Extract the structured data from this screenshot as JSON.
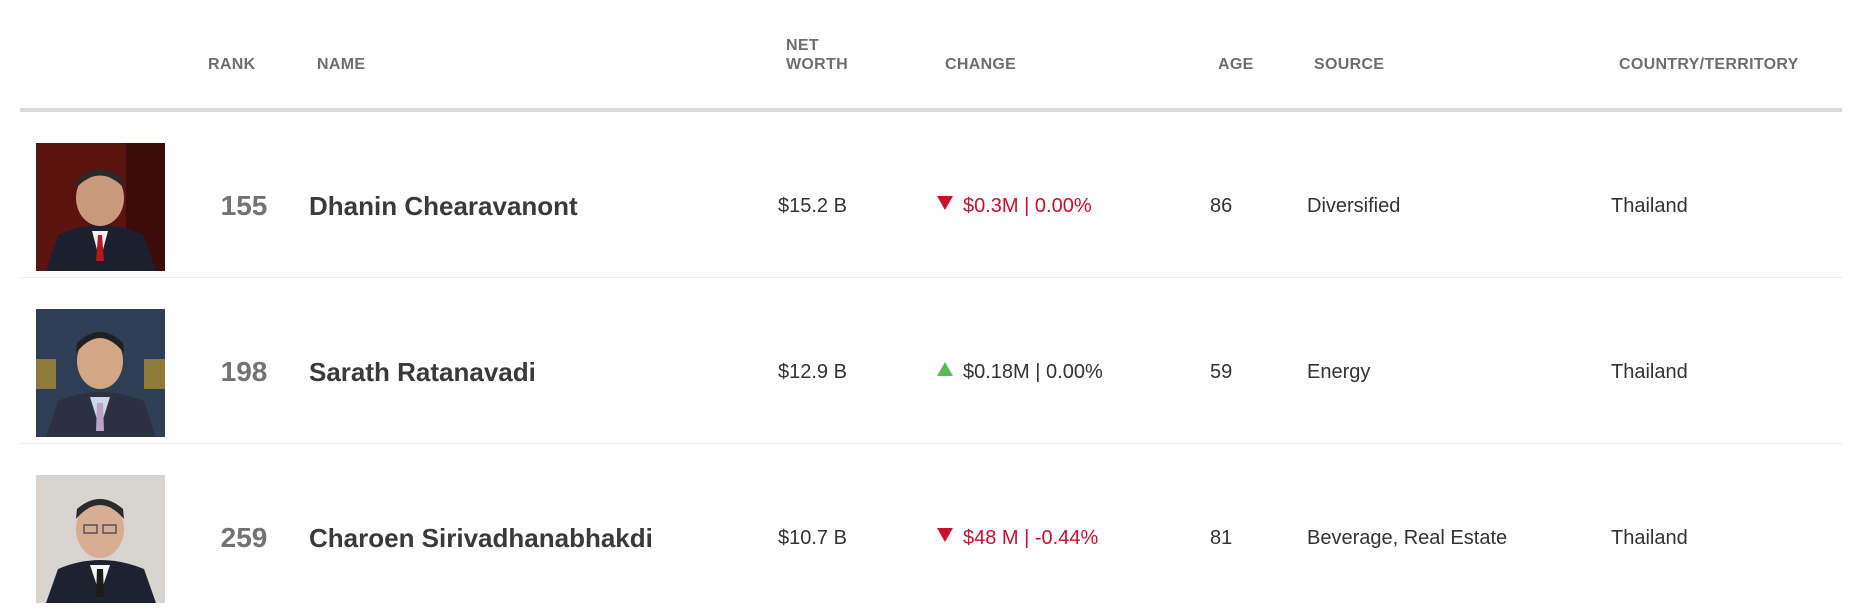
{
  "header": {
    "rank": "RANK",
    "name": "NAME",
    "net_worth": "NET WORTH",
    "change": "CHANGE",
    "age": "AGE",
    "source": "SOURCE",
    "country": "COUNTRY/TERRITORY"
  },
  "rows": [
    {
      "rank": "155",
      "name": "Dhanin Chearavanont",
      "net_worth": "$15.2 B",
      "change": "$0.3M | 0.00%",
      "direction": "down",
      "age": "86",
      "source": "Diversified",
      "country": "Thailand"
    },
    {
      "rank": "198",
      "name": "Sarath Ratanavadi",
      "net_worth": "$12.9 B",
      "change": "$0.18M | 0.00%",
      "direction": "up",
      "age": "59",
      "source": "Energy",
      "country": "Thailand"
    },
    {
      "rank": "259",
      "name": "Charoen Sirivadhanabhakdi",
      "net_worth": "$10.7 B",
      "change": "$48 M | -0.44%",
      "direction": "down",
      "age": "81",
      "source": "Beverage, Real Estate",
      "country": "Thailand"
    }
  ],
  "colors": {
    "negative": "#c8102e",
    "positive_arrow": "#5cb85c",
    "header_text": "#6e6e6e",
    "divider": "#d9d9d9"
  }
}
